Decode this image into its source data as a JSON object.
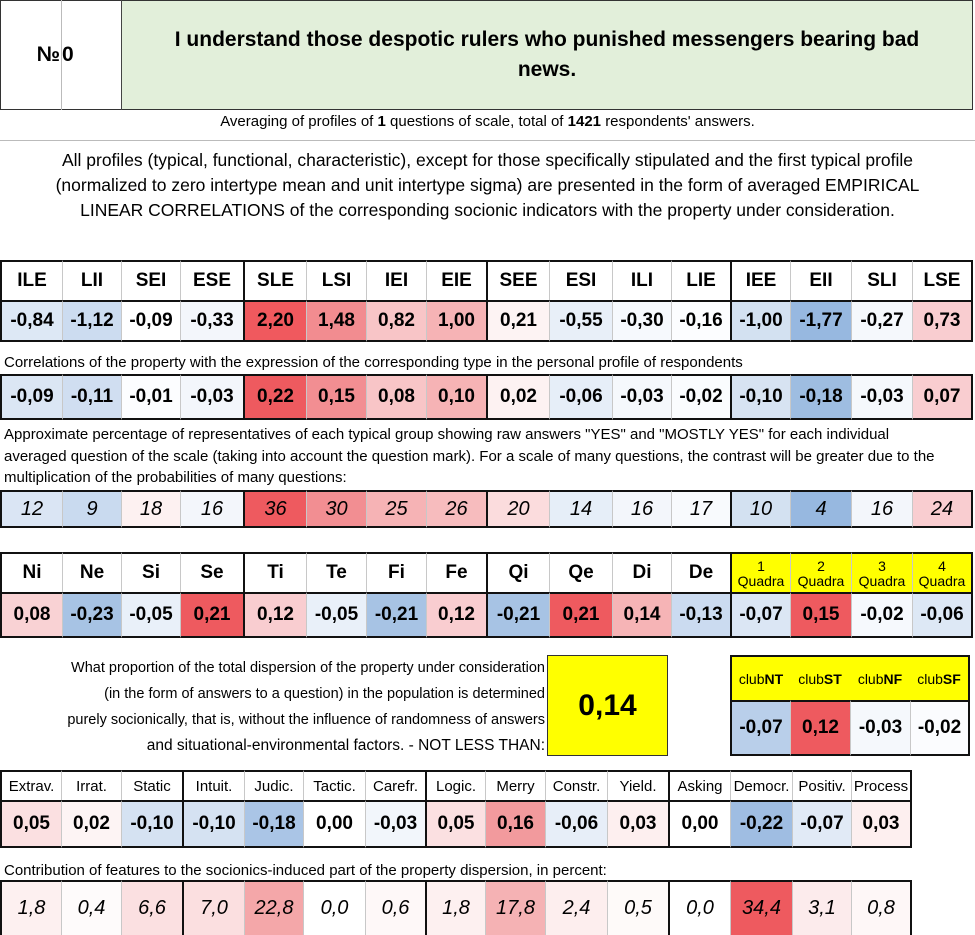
{
  "header": {
    "number_label": "№",
    "number_value": "0",
    "question": "I understand those despotic rulers who punished messengers bearing bad news."
  },
  "summary": {
    "pre": "Averaging of profiles of",
    "questions": "1",
    "mid": "questions of scale, total of",
    "answers": "1421",
    "post": "respondents' answers."
  },
  "description": {
    "line1": "All profiles (typical, functional, characteristic), except for those specifically stipulated and the first typical profile",
    "line2": "(normalized to zero intertype mean and unit intertype sigma) are presented in the form of averaged EMPIRICAL",
    "line3": "LINEAR CORRELATIONS of the corresponding socionic indicators with the property under consideration."
  },
  "types": {
    "headers": [
      "ILE",
      "LII",
      "SEI",
      "ESE",
      "SLE",
      "LSI",
      "IEI",
      "EIE",
      "SEE",
      "ESI",
      "ILI",
      "LIE",
      "IEE",
      "EII",
      "SLI",
      "LSE"
    ],
    "normalized": [
      "-0,84",
      "-1,12",
      "-0,09",
      "-0,33",
      "2,20",
      "1,48",
      "0,82",
      "1,00",
      "0,21",
      "-0,55",
      "-0,30",
      "-0,16",
      "-1,00",
      "-1,77",
      "-0,27",
      "0,73"
    ],
    "normalized_colors": [
      "#dde8f5",
      "#ccdcf0",
      "#ffffff",
      "#f3f6fb",
      "#f0595e",
      "#f28c90",
      "#f8c5c7",
      "#f6b3b5",
      "#fdf3f3",
      "#e8eff8",
      "#f6f9fd",
      "#fcfdff",
      "#d3e1f1",
      "#97b8e0",
      "#f5f8fc",
      "#f9cdd0"
    ],
    "correlation_caption": "Correlations of the property with the expression of the corresponding type in the personal profile of respondents",
    "correlations": [
      "-0,09",
      "-0,11",
      "-0,01",
      "-0,03",
      "0,22",
      "0,15",
      "0,08",
      "0,10",
      "0,02",
      "-0,06",
      "-0,03",
      "-0,02",
      "-0,10",
      "-0,18",
      "-0,03",
      "0,07"
    ],
    "correlation_colors": [
      "#dbe6f4",
      "#d0def1",
      "#fcfdff",
      "#f3f6fb",
      "#ee5a5f",
      "#f28e92",
      "#f8c5c7",
      "#f6b3b5",
      "#fdf2f2",
      "#e6eef8",
      "#f5f8fc",
      "#fafcfe",
      "#d7e3f2",
      "#9ebde1",
      "#f5f8fc",
      "#f9cdd0"
    ],
    "percent_caption_1": "Approximate percentage of representatives of each typical group showing raw answers \"YES\" and \"MOSTLY YES\" for each individual",
    "percent_caption_2": "averaged question of the scale (taking into account the question mark). For a scale of many questions, the contrast will be greater due to the",
    "percent_caption_3": "multiplication of the probabilities of many questions:",
    "percentages": [
      "12",
      "9",
      "18",
      "16",
      "36",
      "30",
      "25",
      "26",
      "20",
      "14",
      "16",
      "17",
      "10",
      "4",
      "16",
      "24"
    ],
    "percentage_colors": [
      "#dae5f4",
      "#c9daef",
      "#fdf1f1",
      "#f3f6fb",
      "#ee5a5f",
      "#f28e92",
      "#f6b3b5",
      "#f7bcbe",
      "#fbdcdd",
      "#e6eef8",
      "#f3f6fb",
      "#f8fafd",
      "#d3e1f1",
      "#97b8e0",
      "#f3f6fb",
      "#f9cdd0"
    ]
  },
  "functions": {
    "headers": [
      "Ni",
      "Ne",
      "Si",
      "Se",
      "Ti",
      "Te",
      "Fi",
      "Fe",
      "Qi",
      "Qe",
      "Di",
      "De"
    ],
    "values": [
      "0,08",
      "-0,23",
      "-0,05",
      "0,21",
      "0,12",
      "-0,05",
      "-0,21",
      "0,12",
      "-0,21",
      "0,21",
      "0,14",
      "-0,13"
    ],
    "colors": [
      "#f9d2d4",
      "#a7c3e4",
      "#e9f0f9",
      "#ee5a5f",
      "#f9cdd0",
      "#e9f0f9",
      "#a7c3e4",
      "#f9cdd0",
      "#a7c3e4",
      "#ee5a5f",
      "#f6b4b6",
      "#cbdbf0"
    ]
  },
  "quadras": {
    "numbers": [
      "1",
      "2",
      "3",
      "4"
    ],
    "word": "Quadra",
    "values": [
      "-0,07",
      "0,15",
      "-0,02",
      "-0,06"
    ],
    "colors": [
      "#dbe6f4",
      "#ee5a5f",
      "#f6f9fd",
      "#dde8f5"
    ],
    "highlight": "#ffff00"
  },
  "dispersion": {
    "line1": "What proportion of the total dispersion of the property under consideration",
    "line2": "(in the form of answers to a question) in the population is determined",
    "line3": "purely socionically, that is, without the influence of randomness of answers",
    "line4": "and situational-environmental factors. - NOT LESS THAN:",
    "value": "0,14"
  },
  "clubs": {
    "prefix": "club",
    "names": [
      "NT",
      "ST",
      "NF",
      "SF"
    ],
    "values": [
      "-0,07",
      "0,12",
      "-0,03",
      "-0,02"
    ],
    "colors": [
      "#b9cfea",
      "#ee5a5f",
      "#f5f8fc",
      "#fbfcfe"
    ]
  },
  "traits": {
    "headers": [
      "Extrav.",
      "Irrat.",
      "Static",
      "Intuit.",
      "Judic.",
      "Tactic.",
      "Carefr.",
      "Logic.",
      "Merry",
      "Constr.",
      "Yield.",
      "Asking",
      "Democr.",
      "Positiv.",
      "Process"
    ],
    "values": [
      "0,05",
      "0,02",
      "-0,10",
      "-0,10",
      "-0,18",
      "0,00",
      "-0,03",
      "0,05",
      "0,16",
      "-0,06",
      "0,03",
      "0,00",
      "-0,22",
      "-0,07",
      "0,03"
    ],
    "colors": [
      "#fbe0e1",
      "#fdf4f4",
      "#d5e2f2",
      "#d5e2f2",
      "#aac5e6",
      "#ffffff",
      "#f2f6fb",
      "#fbe0e1",
      "#f29a9d",
      "#e7eef8",
      "#fdefef",
      "#ffffff",
      "#9fbde2",
      "#e1eaf6",
      "#fdefef"
    ],
    "contribution_caption": "Contribution of features to the socionics-induced part of the property dispersion, in percent:",
    "contributions": [
      "1,8",
      "0,4",
      "6,6",
      "7,0",
      "22,8",
      "0,0",
      "0,6",
      "1,8",
      "17,8",
      "2,4",
      "0,5",
      "0,0",
      "34,4",
      "3,1",
      "0,8"
    ],
    "contribution_colors": [
      "#fdf0f0",
      "#fefbfb",
      "#fbe0e1",
      "#fbdfe0",
      "#f4a7a9",
      "#ffffff",
      "#fef8f8",
      "#fdf0f0",
      "#f5b2b4",
      "#fdeeee",
      "#fefaf9",
      "#ffffff",
      "#ee5a5f",
      "#fcebec",
      "#fef7f7"
    ]
  }
}
